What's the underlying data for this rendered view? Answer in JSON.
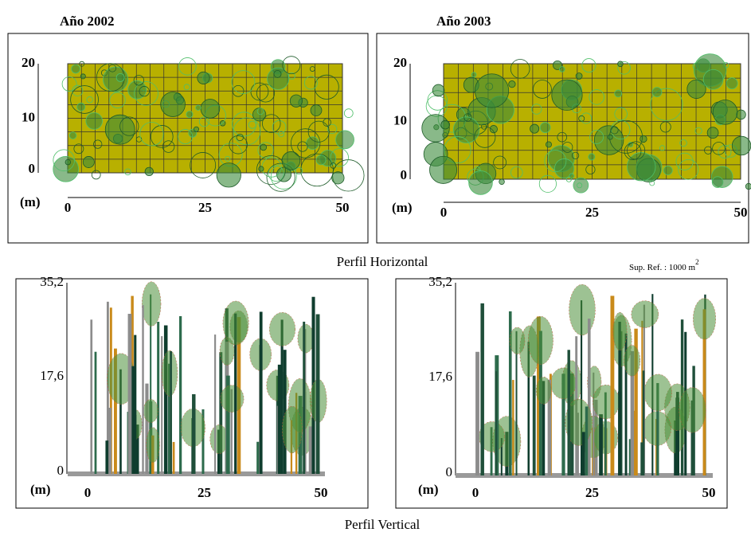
{
  "horizontal": {
    "title": "Perfil Horizontal",
    "reference": {
      "text": "Sup. Ref. : 1000 m",
      "exponent": "2"
    },
    "panels": [
      {
        "year": "Año 2002",
        "y_ticks": [
          "20",
          "10",
          "0"
        ],
        "unit": "(m)",
        "x_ticks": [
          "0",
          "25",
          "50"
        ]
      },
      {
        "year": "Año 2003",
        "y_ticks": [
          "20",
          "10",
          "0"
        ],
        "unit": "(m)",
        "x_ticks": [
          "0",
          "25",
          "50"
        ]
      }
    ]
  },
  "vertical": {
    "title": "Perfil Vertical",
    "panels": [
      {
        "y_ticks": [
          "35,2",
          "17,6",
          "0"
        ],
        "unit": "(m)",
        "x_ticks": [
          "0",
          "25",
          "50"
        ]
      },
      {
        "y_ticks": [
          "35,2",
          "17,6",
          "0"
        ],
        "unit": "(m)",
        "x_ticks": [
          "0",
          "25",
          "50"
        ]
      }
    ]
  }
}
